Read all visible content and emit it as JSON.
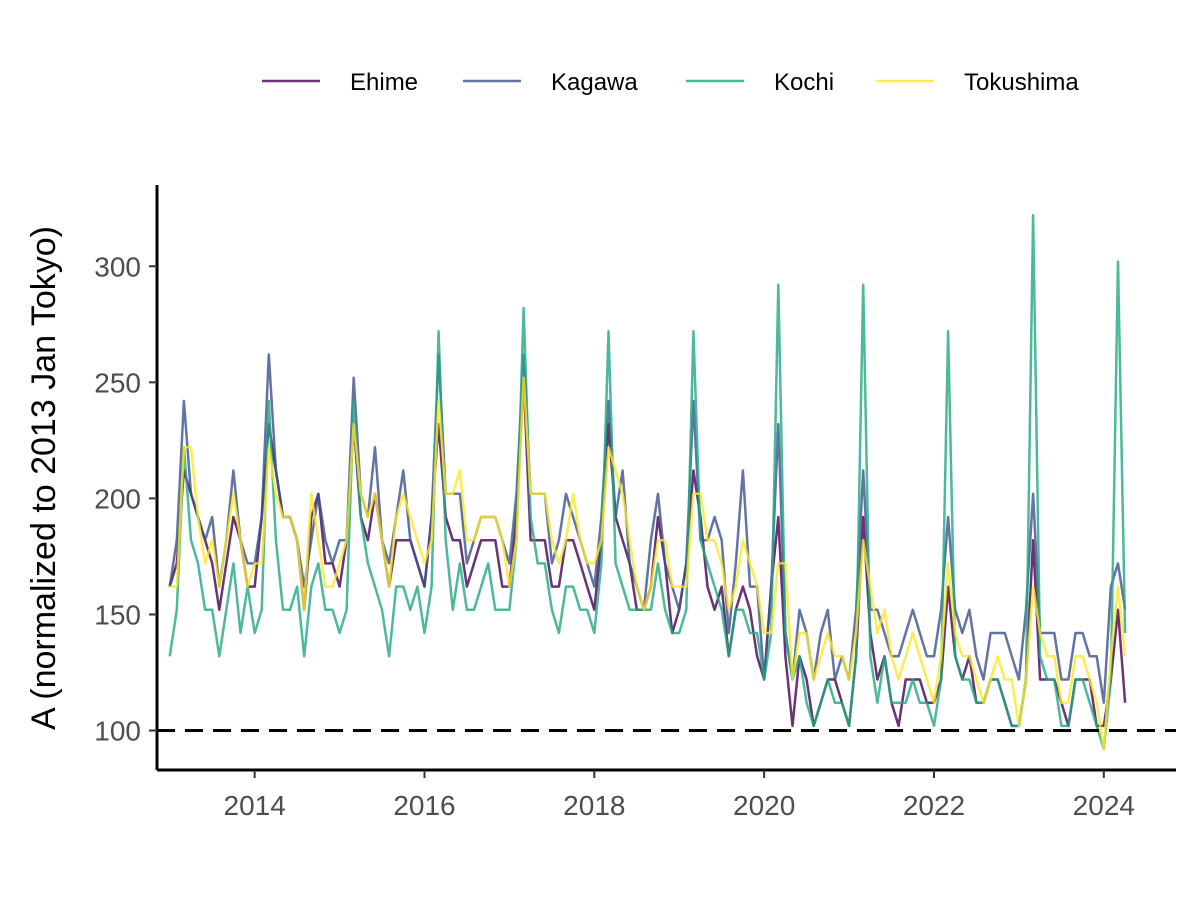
{
  "chart_data": {
    "type": "line",
    "title": "",
    "xlabel": "",
    "ylabel": "A (normalized to 2013 Jan Tokyo)",
    "xlim": [
      2012.85,
      2024.85
    ],
    "ylim": [
      83,
      335
    ],
    "x_ticks": [
      2014,
      2016,
      2018,
      2020,
      2022,
      2024
    ],
    "y_ticks": [
      100,
      150,
      200,
      250,
      300
    ],
    "x_tick_labels": [
      "2014",
      "2016",
      "2018",
      "2020",
      "2022",
      "2024"
    ],
    "y_tick_labels": [
      "100",
      "150",
      "200",
      "250",
      "300"
    ],
    "reference_line": {
      "y": 100,
      "style": "dashed",
      "color": "#000000"
    },
    "grid": false,
    "legend_position": "top",
    "x_start": 2013.0,
    "x_step_months": 1,
    "series": [
      {
        "name": "Ehime",
        "color": "#440154",
        "values": [
          162,
          172,
          212,
          202,
          192,
          182,
          172,
          152,
          172,
          192,
          182,
          162,
          162,
          192,
          232,
          212,
          192,
          192,
          182,
          152,
          192,
          202,
          172,
          172,
          162,
          182,
          232,
          192,
          182,
          202,
          182,
          162,
          182,
          182,
          182,
          172,
          162,
          192,
          232,
          192,
          182,
          182,
          162,
          172,
          182,
          182,
          182,
          162,
          162,
          192,
          252,
          182,
          182,
          182,
          162,
          162,
          182,
          182,
          172,
          162,
          152,
          182,
          232,
          192,
          182,
          172,
          152,
          152,
          162,
          192,
          172,
          142,
          152,
          172,
          212,
          192,
          162,
          152,
          162,
          132,
          152,
          162,
          152,
          132,
          122,
          162,
          192,
          132,
          102,
          132,
          122,
          102,
          112,
          122,
          122,
          112,
          102,
          132,
          192,
          142,
          122,
          132,
          112,
          102,
          122,
          122,
          122,
          112,
          112,
          122,
          162,
          132,
          122,
          132,
          112,
          112,
          122,
          122,
          112,
          102,
          102,
          122,
          182,
          122,
          122,
          122,
          112,
          102,
          122,
          122,
          122,
          102,
          102,
          122,
          152,
          112
        ]
      },
      {
        "name": "Kagawa",
        "color": "#3b528b",
        "values": [
          162,
          182,
          242,
          202,
          192,
          182,
          192,
          162,
          182,
          212,
          182,
          172,
          172,
          192,
          262,
          212,
          192,
          192,
          182,
          162,
          182,
          202,
          182,
          172,
          182,
          182,
          252,
          202,
          192,
          222,
          182,
          172,
          192,
          212,
          182,
          172,
          162,
          192,
          262,
          202,
          202,
          202,
          172,
          182,
          192,
          192,
          192,
          182,
          172,
          202,
          262,
          202,
          202,
          202,
          172,
          182,
          202,
          192,
          182,
          172,
          162,
          192,
          242,
          192,
          212,
          172,
          162,
          152,
          182,
          202,
          172,
          162,
          152,
          172,
          242,
          182,
          182,
          192,
          182,
          142,
          172,
          212,
          162,
          162,
          122,
          162,
          232,
          142,
          122,
          152,
          142,
          122,
          142,
          152,
          122,
          132,
          122,
          152,
          212,
          152,
          152,
          142,
          132,
          132,
          142,
          152,
          142,
          132,
          132,
          152,
          192,
          152,
          142,
          152,
          132,
          122,
          142,
          142,
          142,
          132,
          122,
          152,
          202,
          142,
          142,
          142,
          122,
          122,
          142,
          142,
          132,
          132,
          112,
          162,
          172,
          152
        ]
      },
      {
        "name": "Kochi",
        "color": "#21a883",
        "values": [
          132,
          152,
          222,
          182,
          172,
          152,
          152,
          132,
          152,
          172,
          142,
          162,
          142,
          152,
          242,
          182,
          152,
          152,
          162,
          132,
          162,
          172,
          152,
          152,
          142,
          152,
          242,
          192,
          172,
          162,
          152,
          132,
          162,
          162,
          152,
          162,
          142,
          162,
          272,
          182,
          152,
          172,
          152,
          152,
          162,
          172,
          152,
          152,
          152,
          182,
          282,
          192,
          172,
          172,
          152,
          142,
          162,
          162,
          152,
          152,
          142,
          172,
          272,
          172,
          162,
          152,
          152,
          152,
          152,
          172,
          152,
          142,
          142,
          152,
          272,
          182,
          172,
          162,
          152,
          132,
          152,
          152,
          142,
          142,
          122,
          142,
          292,
          142,
          122,
          132,
          112,
          102,
          112,
          122,
          112,
          112,
          102,
          132,
          292,
          132,
          112,
          132,
          112,
          112,
          112,
          122,
          112,
          112,
          102,
          122,
          272,
          132,
          122,
          122,
          112,
          112,
          122,
          122,
          112,
          102,
          102,
          122,
          322,
          132,
          122,
          122,
          102,
          102,
          122,
          122,
          112,
          102,
          92,
          122,
          302,
          142
        ]
      },
      {
        "name": "Tokushima",
        "color": "#fde725",
        "values": [
          162,
          162,
          222,
          222,
          192,
          172,
          182,
          162,
          182,
          202,
          182,
          162,
          172,
          172,
          222,
          202,
          192,
          192,
          182,
          152,
          202,
          182,
          162,
          162,
          172,
          182,
          232,
          202,
          192,
          202,
          182,
          162,
          192,
          202,
          192,
          182,
          172,
          182,
          242,
          202,
          202,
          212,
          182,
          182,
          192,
          192,
          192,
          182,
          162,
          182,
          252,
          202,
          202,
          202,
          182,
          172,
          182,
          202,
          182,
          172,
          172,
          182,
          222,
          212,
          202,
          182,
          162,
          152,
          162,
          182,
          182,
          162,
          162,
          162,
          202,
          202,
          182,
          182,
          172,
          152,
          162,
          182,
          172,
          162,
          142,
          142,
          172,
          172,
          122,
          142,
          142,
          122,
          132,
          142,
          132,
          132,
          122,
          142,
          182,
          162,
          142,
          152,
          132,
          122,
          132,
          142,
          132,
          122,
          112,
          132,
          172,
          142,
          132,
          132,
          122,
          112,
          122,
          132,
          122,
          122,
          102,
          122,
          162,
          142,
          132,
          132,
          112,
          112,
          132,
          132,
          122,
          112,
          92,
          132,
          162,
          132
        ]
      }
    ]
  }
}
